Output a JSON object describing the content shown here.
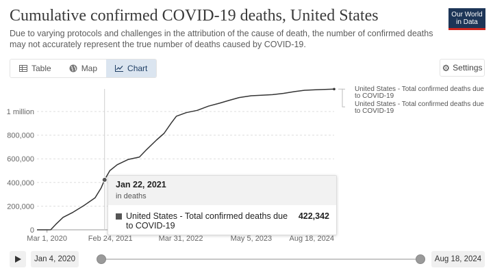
{
  "header": {
    "title": "Cumulative confirmed COVID-19 deaths, United States",
    "subtitle": "Due to varying protocols and challenges in the attribution of the cause of death, the number of confirmed deaths may not accurately represent the true number of deaths caused by COVID-19.",
    "logo_line1": "Our World",
    "logo_line2": "in Data"
  },
  "tabs": [
    {
      "label": "Table",
      "icon": "table-icon"
    },
    {
      "label": "Map",
      "icon": "globe-icon"
    },
    {
      "label": "Chart",
      "icon": "line-chart-icon",
      "active": true
    }
  ],
  "settings": {
    "label": "Settings",
    "icon": "gear-icon"
  },
  "chart_data": {
    "type": "line",
    "title": "",
    "xlabel": "",
    "ylabel": "",
    "ylim": [
      0,
      1250000
    ],
    "y_ticks": [
      {
        "value": 0,
        "label": "0"
      },
      {
        "value": 200000,
        "label": "200,000"
      },
      {
        "value": 400000,
        "label": "400,000"
      },
      {
        "value": 600000,
        "label": "600,000"
      },
      {
        "value": 800000,
        "label": "800,000"
      },
      {
        "value": 1000000,
        "label": "1 million"
      }
    ],
    "x_range": [
      "2020-01-04",
      "2024-08-18"
    ],
    "x_ticks": [
      {
        "date": "2020-03-01",
        "label": "Mar 1, 2020"
      },
      {
        "date": "2021-02-24",
        "label": "Feb 24, 2021"
      },
      {
        "date": "2022-03-31",
        "label": "Mar 31, 2022"
      },
      {
        "date": "2023-05-05",
        "label": "May 5, 2023"
      },
      {
        "date": "2024-08-18",
        "label": "Aug 18, 2024"
      }
    ],
    "grid": "horizontal",
    "series": [
      {
        "name": "United States - Total confirmed deaths due to COVID-19",
        "color": "#333333",
        "points": [
          [
            "2020-01-04",
            0
          ],
          [
            "2020-03-01",
            1
          ],
          [
            "2020-03-22",
            500
          ],
          [
            "2020-04-19",
            45000
          ],
          [
            "2020-05-31",
            105000
          ],
          [
            "2020-07-26",
            148000
          ],
          [
            "2020-09-27",
            205000
          ],
          [
            "2020-11-29",
            270000
          ],
          [
            "2021-01-03",
            355000
          ],
          [
            "2021-01-22",
            422342
          ],
          [
            "2021-02-21",
            500000
          ],
          [
            "2021-04-04",
            550000
          ],
          [
            "2021-06-06",
            595000
          ],
          [
            "2021-08-08",
            615000
          ],
          [
            "2021-09-19",
            680000
          ],
          [
            "2021-11-14",
            760000
          ],
          [
            "2021-12-26",
            815000
          ],
          [
            "2022-02-06",
            905000
          ],
          [
            "2022-03-06",
            960000
          ],
          [
            "2022-05-01",
            990000
          ],
          [
            "2022-07-03",
            1010000
          ],
          [
            "2022-09-04",
            1045000
          ],
          [
            "2022-11-06",
            1070000
          ],
          [
            "2023-01-01",
            1095000
          ],
          [
            "2023-02-26",
            1118000
          ],
          [
            "2023-05-05",
            1133000
          ],
          [
            "2023-07-02",
            1137000
          ],
          [
            "2023-09-03",
            1142000
          ],
          [
            "2023-11-05",
            1153000
          ],
          [
            "2024-01-07",
            1168000
          ],
          [
            "2024-03-03",
            1179000
          ],
          [
            "2024-05-05",
            1183000
          ],
          [
            "2024-08-18",
            1189000
          ]
        ]
      }
    ],
    "legend": {
      "position": "right",
      "entries": [
        "United States - Total confirmed deaths due to COVID-19",
        "United States - Total confirmed deaths due to COVID-19"
      ]
    },
    "hover": {
      "date": "2021-01-22",
      "value": 422342
    }
  },
  "tooltip": {
    "date": "Jan 22, 2021",
    "unit": "in deaths",
    "series_name": "United States - Total confirmed deaths due to COVID-19",
    "value": "422,342"
  },
  "timeline": {
    "start_label": "Jan 4, 2020",
    "end_label": "Aug 18, 2024",
    "range": [
      0,
      1
    ]
  }
}
